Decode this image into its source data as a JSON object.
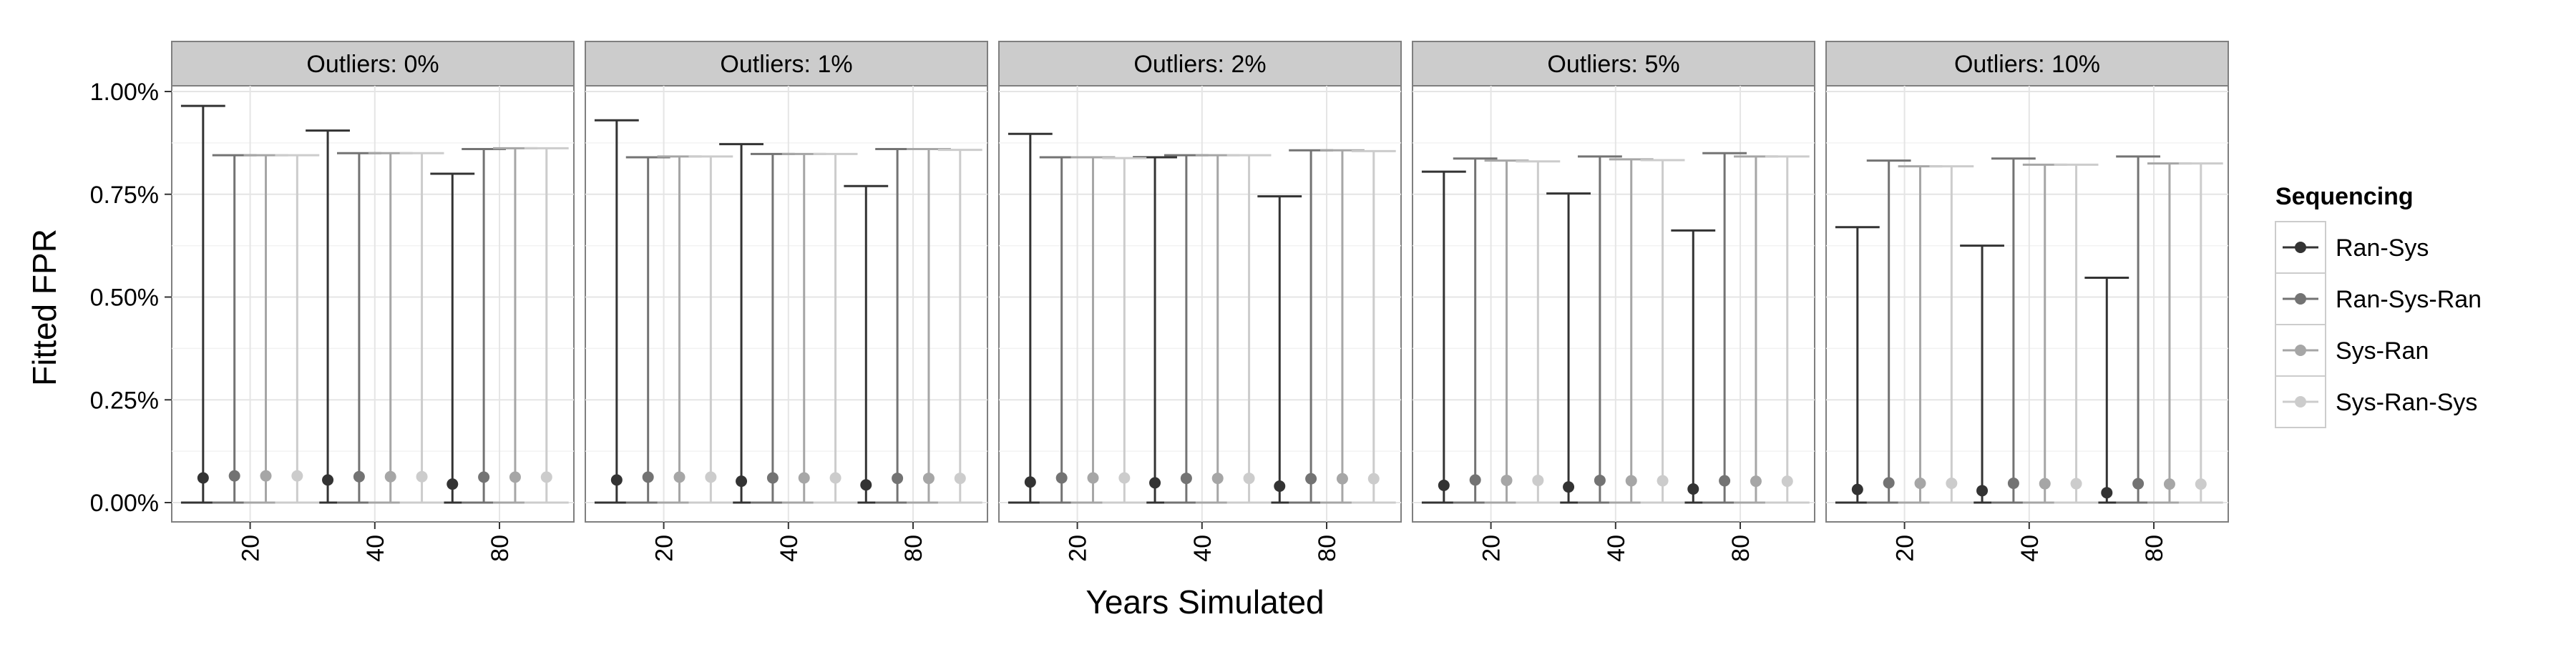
{
  "chart_data": {
    "type": "errorbar",
    "facet_label_prefix": "Outliers: ",
    "panels": [
      "0%",
      "1%",
      "2%",
      "5%",
      "10%"
    ],
    "x_categories": [
      "20",
      "40",
      "80"
    ],
    "xlabel": "Years Simulated",
    "ylabel": "Fitted FPR",
    "ylim": [
      0,
      0.01
    ],
    "yticks": [
      "0.00%",
      "0.25%",
      "0.50%",
      "0.75%",
      "1.00%"
    ],
    "ytick_values": [
      0,
      0.0025,
      0.005,
      0.0075,
      0.01
    ],
    "grid": true,
    "legend": {
      "title": "Sequencing",
      "position": "right",
      "entries": [
        "Ran-Sys",
        "Ran-Sys-Ran",
        "Sys-Ran",
        "Sys-Ran-Sys"
      ]
    },
    "series": [
      {
        "name": "Ran-Sys",
        "color": "#333333",
        "points": [
          [
            [
              0.0006,
              0,
              0.00965
            ],
            [
              0.00055,
              0,
              0.00905
            ],
            [
              0.00045,
              0,
              0.008
            ]
          ],
          [
            [
              0.00055,
              0,
              0.0093
            ],
            [
              0.00052,
              0,
              0.00872
            ],
            [
              0.00043,
              0,
              0.0077
            ]
          ],
          [
            [
              0.0005,
              0,
              0.00897
            ],
            [
              0.00048,
              0,
              0.0084
            ],
            [
              0.0004,
              0,
              0.00745
            ]
          ],
          [
            [
              0.00042,
              0,
              0.00805
            ],
            [
              0.00038,
              0,
              0.00752
            ],
            [
              0.00033,
              0,
              0.00662
            ]
          ],
          [
            [
              0.00032,
              0,
              0.0067
            ],
            [
              0.00029,
              0,
              0.00625
            ],
            [
              0.00024,
              0,
              0.00547
            ]
          ]
        ]
      },
      {
        "name": "Ran-Sys-Ran",
        "color": "#737373",
        "points": [
          [
            [
              0.00065,
              0,
              0.00845
            ],
            [
              0.00063,
              0,
              0.0085
            ],
            [
              0.00062,
              0,
              0.0086
            ]
          ],
          [
            [
              0.00062,
              0,
              0.0084
            ],
            [
              0.0006,
              0,
              0.00848
            ],
            [
              0.00059,
              0,
              0.0086
            ]
          ],
          [
            [
              0.0006,
              0,
              0.0084
            ],
            [
              0.00059,
              0,
              0.00845
            ],
            [
              0.00058,
              0,
              0.00857
            ]
          ],
          [
            [
              0.00055,
              0,
              0.00837
            ],
            [
              0.00054,
              0,
              0.00842
            ],
            [
              0.00053,
              0,
              0.0085
            ]
          ],
          [
            [
              0.00048,
              0,
              0.00832
            ],
            [
              0.00047,
              0,
              0.00837
            ],
            [
              0.00046,
              0,
              0.00842
            ]
          ]
        ]
      },
      {
        "name": "Sys-Ran",
        "color": "#a6a6a6",
        "points": [
          [
            [
              0.00065,
              0,
              0.00845
            ],
            [
              0.00063,
              0,
              0.0085
            ],
            [
              0.00062,
              0,
              0.00862
            ]
          ],
          [
            [
              0.00062,
              0,
              0.00842
            ],
            [
              0.0006,
              0,
              0.00848
            ],
            [
              0.00059,
              0,
              0.0086
            ]
          ],
          [
            [
              0.0006,
              0,
              0.0084
            ],
            [
              0.00059,
              0,
              0.00845
            ],
            [
              0.00058,
              0,
              0.00857
            ]
          ],
          [
            [
              0.00054,
              0,
              0.00832
            ],
            [
              0.00053,
              0,
              0.00835
            ],
            [
              0.00052,
              0,
              0.00842
            ]
          ],
          [
            [
              0.00047,
              0,
              0.00818
            ],
            [
              0.00046,
              0,
              0.00822
            ],
            [
              0.00045,
              0,
              0.00825
            ]
          ]
        ]
      },
      {
        "name": "Sys-Ran-Sys",
        "color": "#cccccc",
        "points": [
          [
            [
              0.00065,
              0,
              0.00845
            ],
            [
              0.00063,
              0,
              0.0085
            ],
            [
              0.00062,
              0,
              0.00862
            ]
          ],
          [
            [
              0.00062,
              0,
              0.00842
            ],
            [
              0.0006,
              0,
              0.00848
            ],
            [
              0.00059,
              0,
              0.00858
            ]
          ],
          [
            [
              0.0006,
              0,
              0.00838
            ],
            [
              0.00059,
              0,
              0.00845
            ],
            [
              0.00058,
              0,
              0.00855
            ]
          ],
          [
            [
              0.00054,
              0,
              0.0083
            ],
            [
              0.00053,
              0,
              0.00833
            ],
            [
              0.00052,
              0,
              0.00842
            ]
          ],
          [
            [
              0.00047,
              0,
              0.00818
            ],
            [
              0.00046,
              0,
              0.00822
            ],
            [
              0.00045,
              0,
              0.00825
            ]
          ]
        ]
      }
    ]
  }
}
